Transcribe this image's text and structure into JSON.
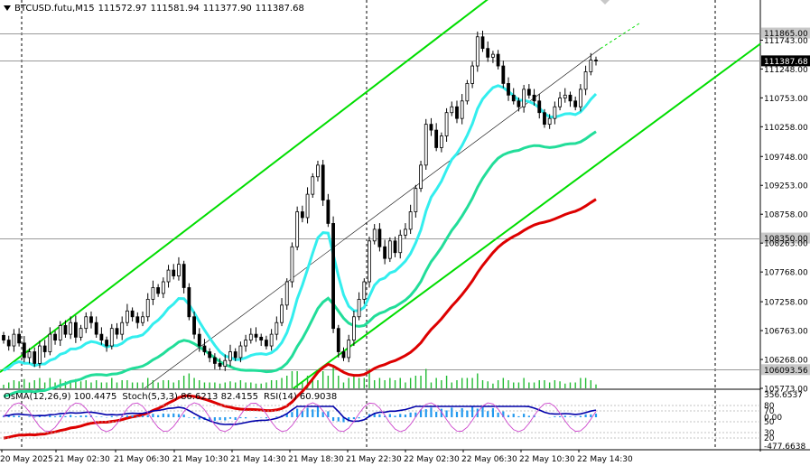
{
  "header": {
    "symbol": "BTCUSD.futu,M15",
    "open": "111572.97",
    "high": "111581.94",
    "low": "111377.90",
    "close": "111387.68"
  },
  "indicator_header": {
    "osma": "OsMA(12,26,9) 100.4475",
    "stoch": "Stoch(5,3,3) 86.6213 82.4155",
    "rsi": "RSI(14) 60.9038"
  },
  "colors": {
    "candle": "#000000",
    "channel": "#00dd00",
    "ma_fast": "#33eeee",
    "ma_mid": "#22dd99",
    "ma_slow": "#dd0000",
    "volume": "#22bb33",
    "osma": "#2299ee",
    "rsi": "#0000aa",
    "stoch": "#cc44cc",
    "grid": "#000000"
  },
  "chart_data": [
    {
      "type": "candlestick",
      "title": "BTCUSD.futu,M15",
      "y_axis_labels": [
        "111865.00",
        "111743.00",
        "111387.68",
        "111248.00",
        "110753.00",
        "110258.00",
        "109748.00",
        "109253.00",
        "108758.00",
        "108350.00",
        "108263.00",
        "107768.00",
        "107258.00",
        "106763.00",
        "106268.00",
        "106093.56",
        "105773.00"
      ],
      "highlighted_levels": [
        {
          "label": "111865.00",
          "value": 111865.0
        },
        {
          "label": "111387.68",
          "value": 111387.68
        },
        {
          "label": "108350.00",
          "value": 108350.0
        },
        {
          "label": "106093.56",
          "value": 106093.56
        }
      ],
      "ylim": [
        105773,
        112400
      ],
      "x_tick_labels": [
        "20 May 2025",
        "21 May 02:30",
        "21 May 06:30",
        "21 May 10:30",
        "21 May 14:30",
        "21 May 18:30",
        "21 May 22:30",
        "22 May 02:30",
        "22 May 06:30",
        "22 May 10:30",
        "22 May 14:30"
      ],
      "close_series": [
        106600,
        106500,
        106700,
        106550,
        106300,
        106400,
        106200,
        106500,
        106400,
        106700,
        106600,
        106850,
        106700,
        106900,
        106650,
        106800,
        107000,
        106900,
        106700,
        106600,
        106500,
        106800,
        106700,
        106900,
        107100,
        107000,
        106900,
        107000,
        107300,
        107500,
        107400,
        107600,
        107800,
        107700,
        107900,
        107500,
        107000,
        106700,
        106500,
        106400,
        106300,
        106200,
        106150,
        106250,
        106400,
        106300,
        106500,
        106600,
        106700,
        106650,
        106600,
        106500,
        106700,
        106900,
        107200,
        107600,
        108200,
        108800,
        108700,
        109100,
        109400,
        109600,
        109000,
        108600,
        106800,
        106400,
        106300,
        106600,
        107000,
        107300,
        107600,
        108300,
        108500,
        108200,
        108000,
        108300,
        108100,
        108400,
        108500,
        108800,
        109200,
        109600,
        110300,
        110200,
        109900,
        110100,
        110500,
        110600,
        110400,
        110700,
        111000,
        111300,
        111800,
        111600,
        111450,
        111500,
        111300,
        111000,
        110800,
        110700,
        110600,
        110900,
        110800,
        110700,
        110500,
        110300,
        110400,
        110600,
        110750,
        110800,
        110700,
        110600,
        110900,
        111200,
        111400,
        111387.68
      ],
      "indicators": [
        {
          "name": "OsMA(12,26,9)",
          "value": 100.4475
        },
        {
          "name": "Stoch(5,3,3)",
          "main": 86.6213,
          "signal": 82.4155
        },
        {
          "name": "RSI(14)",
          "value": 60.9038
        }
      ],
      "indicator_axis_labels": [
        "356.6537",
        "80",
        "70",
        "0.00",
        "50",
        "30",
        "20",
        "-477.6638"
      ]
    }
  ]
}
